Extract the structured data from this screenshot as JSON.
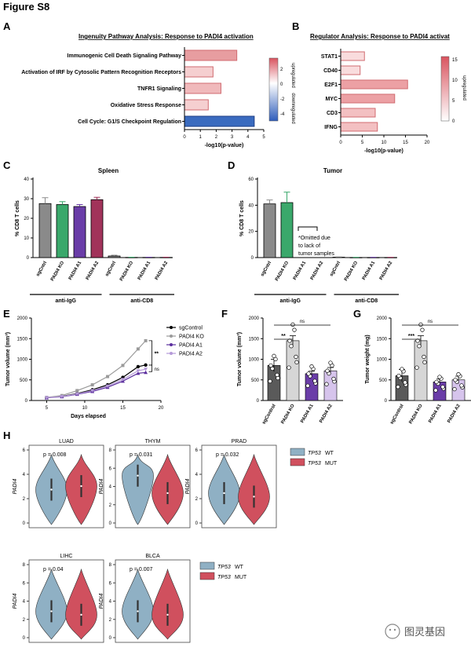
{
  "figure_title": "Figure S8",
  "watermark": "图灵基因",
  "panels": {
    "A": {
      "label": "A",
      "title": "Ingenuity Pathway Analysis: Response to PADI4 activation"
    },
    "B": {
      "label": "B",
      "title": "Regulator Analysis: Response to PADI4 activat"
    },
    "C": {
      "label": "C",
      "title": "Spleen"
    },
    "D": {
      "label": "D",
      "title": "Tumor",
      "note": [
        "*Omitted due",
        "to lack of",
        "tumor samples"
      ]
    },
    "E": {
      "label": "E"
    },
    "F": {
      "label": "F"
    },
    "G": {
      "label": "G"
    },
    "H": {
      "label": "H"
    }
  },
  "chart_data": [
    {
      "id": "A",
      "type": "bar",
      "orientation": "horizontal",
      "title": "Ingenuity Pathway Analysis: Response to PADI4 activation",
      "categories": [
        "Immunogenic Cell Death Signaling Pathway",
        "Activation of IRF by Cytosolic Pattern Recognition Receptors",
        "TNFR1 Signaling",
        "Oxidative Stress Response",
        "Cell Cycle: G1/S Checkpoint Regulation"
      ],
      "values": [
        3.3,
        1.8,
        2.3,
        1.5,
        4.4
      ],
      "zscore": [
        2.0,
        0.8,
        1.2,
        0.6,
        -2.8
      ],
      "xlabel": "-log10(p-value)",
      "xlim": [
        0,
        5
      ],
      "xticks": [
        "0",
        "1",
        "2",
        "3",
        "4",
        "5"
      ],
      "colorbar": {
        "ticks": [
          "2",
          "0",
          "-2",
          "-4"
        ],
        "labels": [
          "upregulated",
          "downregulated"
        ]
      }
    },
    {
      "id": "B",
      "type": "bar",
      "orientation": "horizontal",
      "title": "Regulator Analysis: Response to PADI4 activat",
      "categories": [
        "STAT1",
        "CD40",
        "E2F1",
        "MYC",
        "CD3",
        "IFNG"
      ],
      "values": [
        5.5,
        4.5,
        15.5,
        12.5,
        8.0,
        8.5
      ],
      "xlabel": "-log10(p-value)",
      "xlim": [
        0,
        20
      ],
      "xticks": [
        "0",
        "5",
        "10",
        "15",
        "20"
      ],
      "colorbar": {
        "ticks": [
          "15",
          "10",
          "5",
          "0"
        ],
        "labels": [
          "upregulated"
        ]
      }
    },
    {
      "id": "C",
      "type": "bar",
      "title": "Spleen",
      "ylabel": "% CD8 T cells",
      "ylim": [
        0,
        40
      ],
      "yticks": [
        "0",
        "10",
        "20",
        "30",
        "40"
      ],
      "categories": [
        "sgCntrl",
        "PADI4 KO",
        "PADI4 A1",
        "PADI4 A2",
        "sgCntrl",
        "PADI4 KO",
        "PADI4 A1",
        "PADI4 A2"
      ],
      "values": [
        27.5,
        27.0,
        26.0,
        29.5,
        0.8,
        0.1,
        0.1,
        0.1
      ],
      "errors": [
        3.0,
        1.5,
        1.0,
        1.2,
        0.4,
        0.1,
        0.1,
        0.1
      ],
      "groups": [
        "anti-IgG",
        "anti-CD8"
      ]
    },
    {
      "id": "D",
      "type": "bar",
      "title": "Tumor",
      "ylabel": "% CD8 T cells",
      "ylim": [
        0,
        60
      ],
      "yticks": [
        "0",
        "20",
        "40",
        "60"
      ],
      "categories": [
        "sgCntrl",
        "PADI4 KO",
        "PADI4 A1",
        "PADI4 A2",
        "sgCntrl",
        "PADI4 KO",
        "PADI4 A1",
        "PADI4 A2"
      ],
      "values": [
        41.0,
        42.0,
        null,
        null,
        0.3,
        0.1,
        0.1,
        0.1
      ],
      "errors": [
        3.0,
        8.0,
        null,
        null,
        0.2,
        0.1,
        0.1,
        0.1
      ],
      "groups": [
        "anti-IgG",
        "anti-CD8"
      ]
    },
    {
      "id": "E",
      "type": "line",
      "xlabel": "Days elapsed",
      "ylabel": "Tumor volume (mm³)",
      "xlim": [
        3,
        20
      ],
      "ylim": [
        0,
        2000
      ],
      "xticks": [
        "5",
        "10",
        "15",
        "20"
      ],
      "yticks": [
        "0",
        "500",
        "1000",
        "1500",
        "2000"
      ],
      "x": [
        5,
        7,
        9,
        11,
        13,
        15,
        17,
        18
      ],
      "series": [
        {
          "name": "sgControl",
          "values": [
            70,
            100,
            170,
            260,
            380,
            560,
            820,
            860
          ]
        },
        {
          "name": "PADI4 KO",
          "values": [
            75,
            120,
            240,
            380,
            580,
            850,
            1250,
            1450
          ]
        },
        {
          "name": "PADI4 A1",
          "values": [
            65,
            90,
            150,
            220,
            320,
            470,
            660,
            680
          ]
        },
        {
          "name": "PADI4 A2",
          "values": [
            70,
            95,
            160,
            240,
            350,
            510,
            720,
            760
          ]
        }
      ],
      "annotations": [
        "**",
        "ns"
      ]
    },
    {
      "id": "F",
      "type": "bar",
      "ylabel": "Tumor volume (mm³)",
      "ylim": [
        0,
        2000
      ],
      "yticks": [
        "0",
        "500",
        "1000",
        "1500",
        "2000"
      ],
      "categories": [
        "sgControl",
        "PADI4 KO",
        "PADI4 A1",
        "PADI4 A2"
      ],
      "values": [
        850,
        1450,
        650,
        720
      ],
      "errors": [
        150,
        120,
        60,
        80
      ],
      "annotations": [
        "**",
        "ns"
      ]
    },
    {
      "id": "G",
      "type": "bar",
      "ylabel": "Tumor weight (mg)",
      "ylim": [
        0,
        2000
      ],
      "yticks": [
        "0",
        "500",
        "1000",
        "1500",
        "2000"
      ],
      "categories": [
        "sgControl",
        "PADI4 KO",
        "PADI4 A1",
        "PADI4 A2"
      ],
      "values": [
        600,
        1450,
        450,
        500
      ],
      "errors": [
        150,
        120,
        70,
        90
      ],
      "annotations": [
        "***",
        "ns"
      ]
    },
    {
      "id": "H",
      "type": "violin",
      "ylabel": "PADI4",
      "legend": [
        {
          "name": "TP53",
          "suffix": "WT",
          "color": "#8fb0c4"
        },
        {
          "name": "TP53",
          "suffix": "MUT",
          "color": "#d0505e"
        }
      ],
      "subplots": [
        {
          "title": "LUAD",
          "p": "p = 0.008",
          "yticks": [
            "0",
            "2",
            "4",
            "6"
          ]
        },
        {
          "title": "THYM",
          "p": "p = 0.031",
          "yticks": [
            "0",
            "2",
            "4",
            "6",
            "8"
          ]
        },
        {
          "title": "PRAD",
          "p": "p = 0.032",
          "yticks": [
            "0",
            "2",
            "4",
            "6"
          ]
        },
        {
          "title": "LIHC",
          "p": "p = 0.04",
          "yticks": [
            "0",
            "2",
            "4",
            "6",
            "8"
          ]
        },
        {
          "title": "BLCA",
          "p": "p = 0.007",
          "yticks": [
            "0",
            "2",
            "4",
            "6",
            "8"
          ]
        }
      ]
    }
  ]
}
